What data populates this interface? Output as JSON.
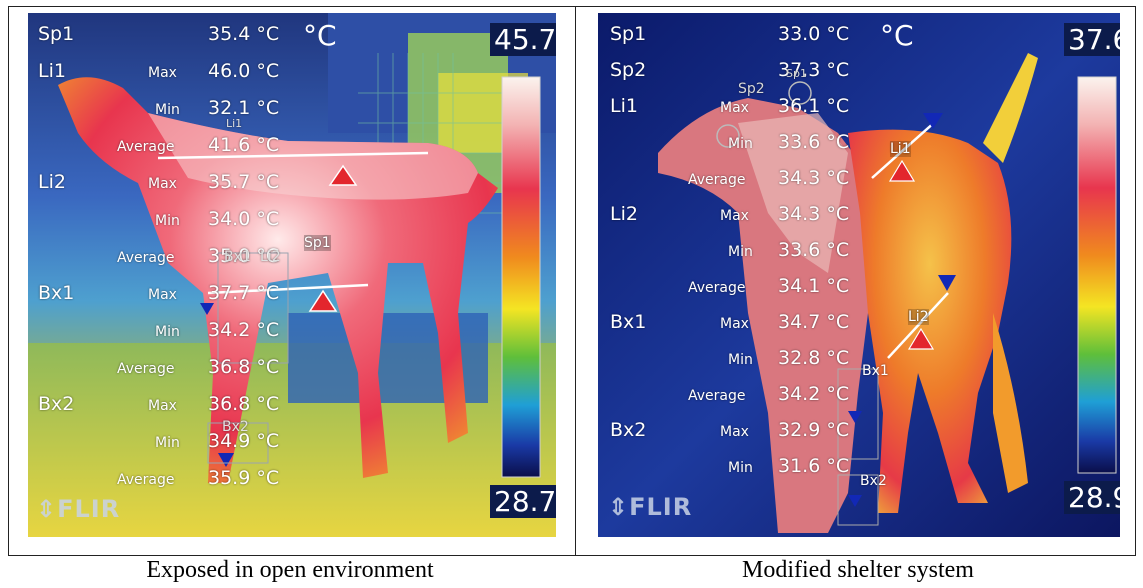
{
  "captions": {
    "left": "Exposed in open environment",
    "right": "Modified shelter system"
  },
  "left_panel": {
    "unit": "°C",
    "scale_max": "45.7",
    "scale_min": "28.7",
    "logo": "FLIR",
    "markers": {
      "sp1": "Sp1",
      "li1": "Li1",
      "li2": "Li2",
      "bx1": "Bx1",
      "bx2": "Bx2"
    },
    "rows": [
      {
        "label": "Sp1",
        "sub": "",
        "value": "35.4 °C"
      },
      {
        "label": "Li1",
        "sub": "Max",
        "value": "46.0 °C"
      },
      {
        "label": "",
        "sub": "Min",
        "value": "32.1 °C"
      },
      {
        "label": "",
        "sub": "Average",
        "value": "41.6 °C"
      },
      {
        "label": "Li2",
        "sub": "Max",
        "value": "35.7 °C"
      },
      {
        "label": "",
        "sub": "Min",
        "value": "34.0 °C"
      },
      {
        "label": "",
        "sub": "Average",
        "value": "35.0 °C"
      },
      {
        "label": "Bx1",
        "sub": "Max",
        "value": "37.7 °C"
      },
      {
        "label": "",
        "sub": "Min",
        "value": "34.2 °C"
      },
      {
        "label": "",
        "sub": "Average",
        "value": "36.8 °C"
      },
      {
        "label": "Bx2",
        "sub": "Max",
        "value": "36.8 °C"
      },
      {
        "label": "",
        "sub": "Min",
        "value": "34.9 °C"
      },
      {
        "label": "",
        "sub": "Average",
        "value": "35.9 °C"
      }
    ]
  },
  "right_panel": {
    "unit": "°C",
    "scale_max": "37.6",
    "scale_min": "28.9",
    "logo": "FLIR",
    "markers": {
      "sp1": "Sp1",
      "sp2": "Sp2",
      "li1": "Li1",
      "li2": "Li2",
      "bx1": "Bx1",
      "bx2": "Bx2"
    },
    "rows": [
      {
        "label": "Sp1",
        "sub": "",
        "value": "33.0 °C"
      },
      {
        "label": "Sp2",
        "sub": "",
        "value": "37.3 °C"
      },
      {
        "label": "Li1",
        "sub": "Max",
        "value": "36.1 °C"
      },
      {
        "label": "",
        "sub": "Min",
        "value": "33.6 °C"
      },
      {
        "label": "",
        "sub": "Average",
        "value": "34.3 °C"
      },
      {
        "label": "Li2",
        "sub": "Max",
        "value": "34.3 °C"
      },
      {
        "label": "",
        "sub": "Min",
        "value": "33.6 °C"
      },
      {
        "label": "",
        "sub": "Average",
        "value": "34.1 °C"
      },
      {
        "label": "Bx1",
        "sub": "Max",
        "value": "34.7 °C"
      },
      {
        "label": "",
        "sub": "Min",
        "value": "32.8 °C"
      },
      {
        "label": "",
        "sub": "Average",
        "value": "34.2 °C"
      },
      {
        "label": "Bx2",
        "sub": "Max",
        "value": "32.9 °C"
      },
      {
        "label": "",
        "sub": "Min",
        "value": "31.6 °C"
      }
    ]
  }
}
